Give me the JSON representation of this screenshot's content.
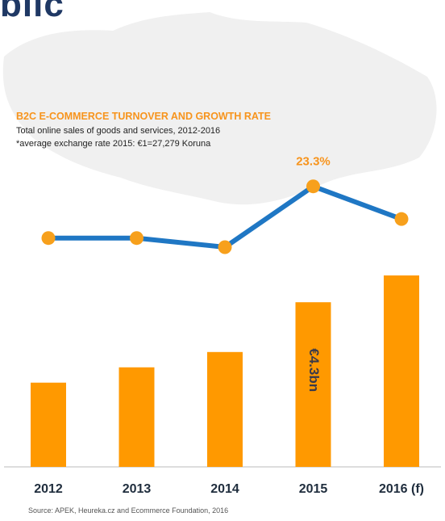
{
  "header": {
    "title_fragment": "blic"
  },
  "chart_data": {
    "type": "bar",
    "title": "B2C E-COMMERCE TURNOVER AND GROWTH RATE",
    "subtitle": "Total online sales of goods and services, 2012-2016",
    "note": "*average exchange rate 2015: €1=27,279 Koruna",
    "categories": [
      "2012",
      "2013",
      "2014",
      "2015",
      "2016 (f)"
    ],
    "series": [
      {
        "type": "bar",
        "values": [
          2.2,
          2.6,
          3.0,
          4.3,
          5.0
        ],
        "data_labels": [
          "",
          "",
          "",
          "€4.3bn",
          ""
        ]
      },
      {
        "type": "line",
        "values": [
          16.5,
          16.5,
          15.3,
          23.3,
          19.0
        ],
        "data_labels": [
          "",
          "",
          "",
          "23.3%",
          ""
        ]
      }
    ],
    "ylim": [
      0,
      5.0
    ],
    "line_ylim": [
      0,
      30
    ],
    "grid": false,
    "legend": "none",
    "colors": {
      "bar": "#ff9900",
      "line": "#1f77c4",
      "marker": "#f7a01c",
      "line_label": "#f7941d",
      "title": "#f7941d",
      "category_label": "#1f2d3d",
      "baseline": "#bbbbbb",
      "map": "#f0f0f0"
    }
  },
  "footer": {
    "source": "Source: APEK, Heureka.cz and Ecommerce Foundation, 2016"
  }
}
